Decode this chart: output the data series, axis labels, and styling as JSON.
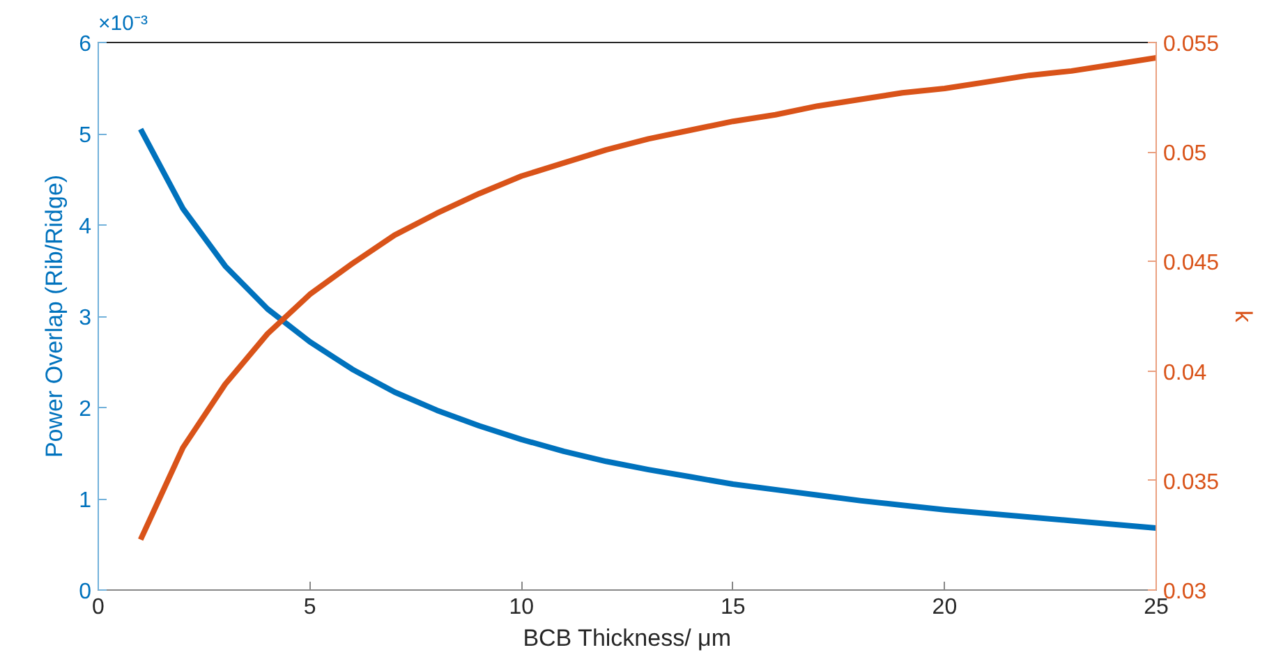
{
  "chart_data": {
    "type": "line",
    "xlabel": "BCB Thickness/ μm",
    "ylabel": "Power Overlap (Rib/Ridge)",
    "y2label": "k",
    "annotations": [
      "×10⁻³"
    ],
    "x": [
      1,
      2,
      3,
      4,
      5,
      6,
      7,
      8,
      9,
      10,
      11,
      12,
      13,
      14,
      15,
      16,
      17,
      18,
      19,
      20,
      21,
      22,
      23,
      24,
      25
    ],
    "series": [
      {
        "color": "#0072bd",
        "values": [
          5.05,
          4.18,
          3.55,
          3.08,
          2.72,
          2.42,
          2.17,
          1.97,
          1.8,
          1.65,
          1.52,
          1.41,
          1.32,
          1.24,
          1.16,
          1.1,
          1.04,
          0.98,
          0.93,
          0.88,
          0.84,
          0.8,
          0.76,
          0.72,
          0.68
        ]
      },
      {
        "color": "#d95319",
        "axis": "y2",
        "values": [
          0.0323,
          0.0365,
          0.0394,
          0.0417,
          0.0435,
          0.0449,
          0.0462,
          0.0472,
          0.0481,
          0.0489,
          0.0495,
          0.0501,
          0.0506,
          0.051,
          0.0514,
          0.0517,
          0.0521,
          0.0524,
          0.0527,
          0.0529,
          0.0532,
          0.0535,
          0.0537,
          0.054,
          0.0543
        ]
      }
    ],
    "xlim": [
      0,
      25
    ],
    "xticks": [
      0,
      5,
      10,
      15,
      20,
      25
    ],
    "ylim": [
      0,
      6
    ],
    "yticks": [
      0,
      1,
      2,
      3,
      4,
      5,
      6
    ],
    "y2lim": [
      0.03,
      0.055
    ],
    "y2ticks": [
      0.03,
      0.035,
      0.04,
      0.045,
      0.05,
      0.055
    ],
    "grid": false
  }
}
